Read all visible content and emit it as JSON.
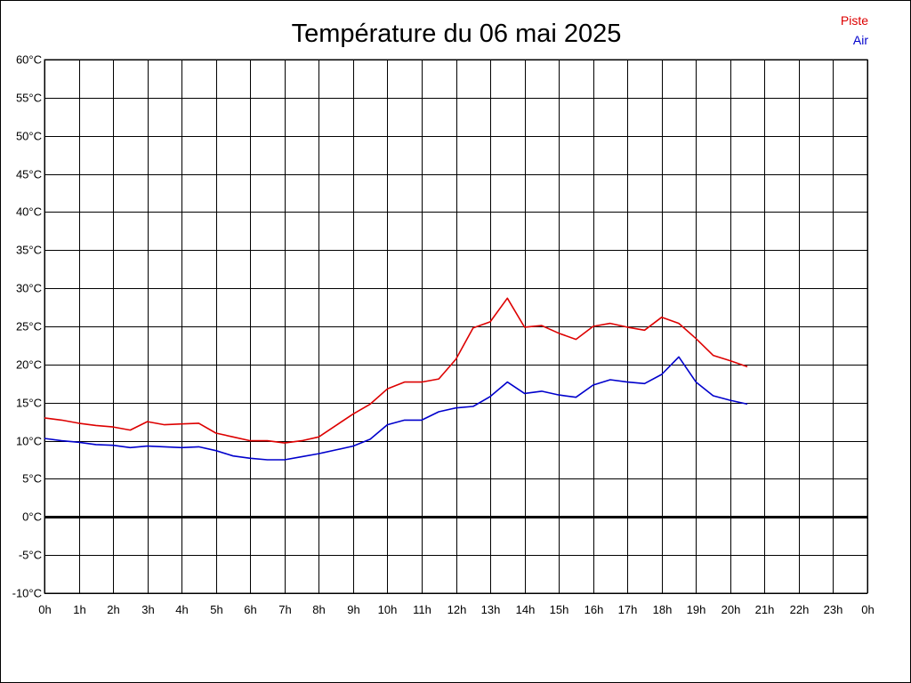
{
  "chart_data": {
    "type": "line",
    "title": "Température du 06 mai 2025",
    "xlabel": "",
    "ylabel": "",
    "grid": true,
    "legend_position": "top-right",
    "ylim": [
      -10,
      60
    ],
    "yticks": [
      {
        "value": 60,
        "label": "60°C"
      },
      {
        "value": 55,
        "label": "55°C"
      },
      {
        "value": 50,
        "label": "50°C"
      },
      {
        "value": 45,
        "label": "45°C"
      },
      {
        "value": 40,
        "label": "40°C"
      },
      {
        "value": 35,
        "label": "35°C"
      },
      {
        "value": 30,
        "label": "30°C"
      },
      {
        "value": 25,
        "label": "25°C"
      },
      {
        "value": 20,
        "label": "20°C"
      },
      {
        "value": 15,
        "label": "15°C"
      },
      {
        "value": 10,
        "label": "10°C"
      },
      {
        "value": 5,
        "label": "5°C"
      },
      {
        "value": 0,
        "label": "0°C"
      },
      {
        "value": -5,
        "label": "-5°C"
      },
      {
        "value": -10,
        "label": "-10°C"
      }
    ],
    "xlim": [
      0,
      24
    ],
    "xticks": [
      {
        "value": 0,
        "label": "0h"
      },
      {
        "value": 1,
        "label": "1h"
      },
      {
        "value": 2,
        "label": "2h"
      },
      {
        "value": 3,
        "label": "3h"
      },
      {
        "value": 4,
        "label": "4h"
      },
      {
        "value": 5,
        "label": "5h"
      },
      {
        "value": 6,
        "label": "6h"
      },
      {
        "value": 7,
        "label": "7h"
      },
      {
        "value": 8,
        "label": "8h"
      },
      {
        "value": 9,
        "label": "9h"
      },
      {
        "value": 10,
        "label": "10h"
      },
      {
        "value": 11,
        "label": "11h"
      },
      {
        "value": 12,
        "label": "12h"
      },
      {
        "value": 13,
        "label": "13h"
      },
      {
        "value": 14,
        "label": "14h"
      },
      {
        "value": 15,
        "label": "15h"
      },
      {
        "value": 16,
        "label": "16h"
      },
      {
        "value": 17,
        "label": "17h"
      },
      {
        "value": 18,
        "label": "18h"
      },
      {
        "value": 19,
        "label": "19h"
      },
      {
        "value": 20,
        "label": "20h"
      },
      {
        "value": 21,
        "label": "21h"
      },
      {
        "value": 22,
        "label": "22h"
      },
      {
        "value": 23,
        "label": "23h"
      },
      {
        "value": 24,
        "label": "0h"
      }
    ],
    "x": [
      0,
      0.5,
      1,
      1.5,
      2,
      2.5,
      3,
      3.5,
      4,
      4.5,
      5,
      5.5,
      6,
      6.5,
      7,
      7.5,
      8,
      8.5,
      9,
      9.5,
      10,
      10.5,
      11,
      11.5,
      12,
      12.5,
      13,
      13.5,
      14,
      14.5,
      15,
      15.5,
      16,
      16.5,
      17,
      17.5,
      18,
      18.5,
      19,
      19.5,
      20,
      20.5
    ],
    "series": [
      {
        "name": "Piste",
        "color": "#dd0000",
        "values": [
          13.0,
          12.7,
          12.3,
          12.0,
          11.8,
          11.4,
          12.5,
          12.1,
          12.2,
          12.3,
          11.0,
          10.5,
          10.0,
          10.0,
          9.7,
          10.0,
          10.5,
          12.0,
          13.5,
          14.8,
          16.8,
          17.7,
          17.7,
          18.1,
          20.7,
          24.8,
          25.6,
          28.7,
          24.9,
          25.1,
          24.1,
          23.3,
          25.0,
          25.4,
          24.9,
          24.5,
          26.2,
          25.4,
          23.4,
          21.2,
          20.5,
          19.7
        ]
      },
      {
        "name": "Air",
        "color": "#0000cc",
        "values": [
          10.3,
          10.0,
          9.8,
          9.5,
          9.4,
          9.1,
          9.3,
          9.2,
          9.1,
          9.2,
          8.7,
          8.0,
          7.7,
          7.5,
          7.5,
          7.9,
          8.3,
          8.8,
          9.3,
          10.2,
          12.1,
          12.7,
          12.7,
          13.8,
          14.3,
          14.5,
          15.8,
          17.7,
          16.2,
          16.5,
          16.0,
          15.7,
          17.3,
          18.0,
          17.7,
          17.5,
          18.7,
          21.0,
          17.7,
          15.9,
          15.3,
          14.8
        ]
      }
    ]
  }
}
